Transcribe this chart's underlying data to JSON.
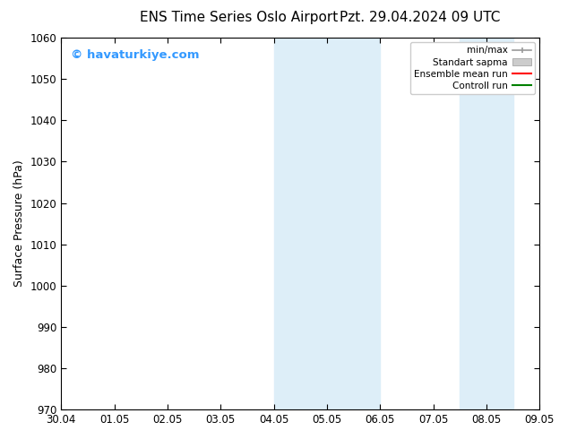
{
  "title_left": "ENS Time Series Oslo Airport",
  "title_right": "Pzt. 29.04.2024 09 UTC",
  "ylabel": "Surface Pressure (hPa)",
  "ylim": [
    970,
    1060
  ],
  "yticks": [
    970,
    980,
    990,
    1000,
    1010,
    1020,
    1030,
    1040,
    1050,
    1060
  ],
  "xtick_labels": [
    "30.04",
    "01.05",
    "02.05",
    "03.05",
    "04.05",
    "05.05",
    "06.05",
    "07.05",
    "08.05",
    "09.05"
  ],
  "xtick_positions": [
    0,
    1,
    2,
    3,
    4,
    5,
    6,
    7,
    8,
    9
  ],
  "xlim": [
    0,
    9
  ],
  "shaded_regions": [
    {
      "xmin": 4,
      "xmax": 6
    },
    {
      "xmin": 7.5,
      "xmax": 8.5
    }
  ],
  "shaded_color": "#ddeef8",
  "background_color": "#ffffff",
  "watermark_text": "© havaturkiye.com",
  "watermark_color": "#3399ff",
  "legend_entries": [
    {
      "label": "min/max"
    },
    {
      "label": "Standart sapma"
    },
    {
      "label": "Ensemble mean run"
    },
    {
      "label": "Controll run"
    }
  ],
  "title_fontsize": 11,
  "tick_fontsize": 8.5,
  "ylabel_fontsize": 9
}
